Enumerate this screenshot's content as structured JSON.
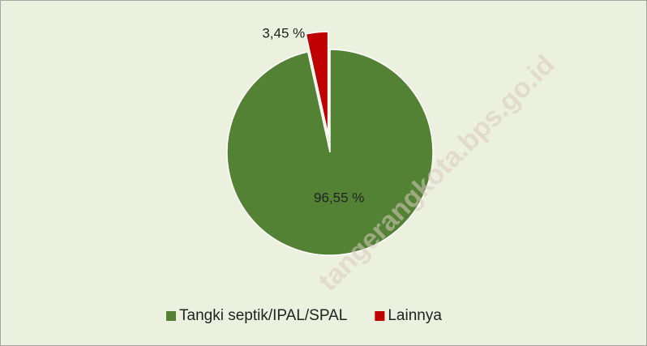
{
  "chart_data": {
    "type": "pie",
    "categories": [
      "Tangki septik/IPAL/SPAL",
      "Lainnya"
    ],
    "values": [
      96.55,
      3.45
    ],
    "value_labels": [
      "96,55 %",
      "3,45 %"
    ],
    "colors": [
      "#548235",
      "#c00000"
    ],
    "legend": "bottom",
    "watermark": "tangerangkota.bps.go.id"
  }
}
